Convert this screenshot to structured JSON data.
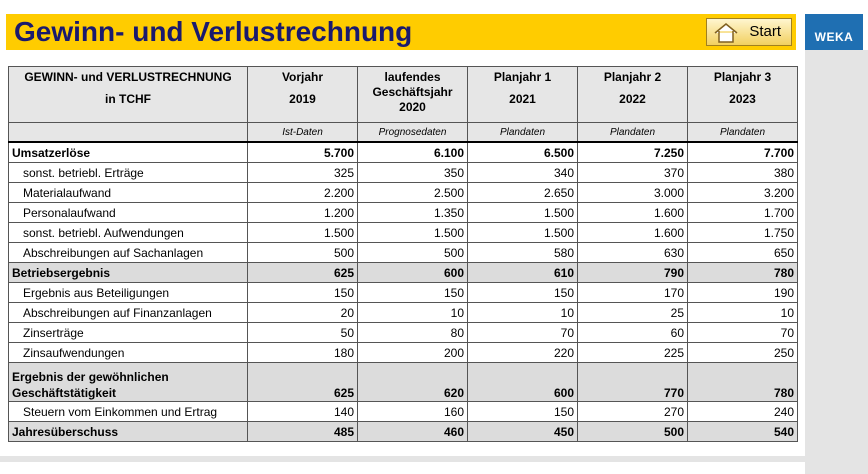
{
  "header": {
    "title": "Gewinn- und Verlustrechnung",
    "button": "Start",
    "logo": "WEKA"
  },
  "table": {
    "columns": [
      {
        "line1": "GEWINN- und VERLUSTRECHNUNG",
        "line2": "in TCHF"
      },
      {
        "line1": "Vorjahr",
        "line2": "2019"
      },
      {
        "line1": "laufendes Geschäftsjahr",
        "line2": "2020"
      },
      {
        "line1": "Planjahr 1",
        "line2": "2021"
      },
      {
        "line1": "Planjahr 2",
        "line2": "2022"
      },
      {
        "line1": "Planjahr 3",
        "line2": "2023"
      }
    ],
    "subheader": [
      "Ist-Daten",
      "Prognosedaten",
      "Plandaten",
      "Plandaten",
      "Plandaten"
    ],
    "rows": [
      {
        "label": "Umsatzerlöse",
        "values": [
          "5.700",
          "6.100",
          "6.500",
          "7.250",
          "7.700"
        ]
      },
      {
        "label": "sonst. betriebl. Erträge",
        "values": [
          "325",
          "350",
          "340",
          "370",
          "380"
        ]
      },
      {
        "label": "Materialaufwand",
        "values": [
          "2.200",
          "2.500",
          "2.650",
          "3.000",
          "3.200"
        ]
      },
      {
        "label": "Personalaufwand",
        "values": [
          "1.200",
          "1.350",
          "1.500",
          "1.600",
          "1.700"
        ]
      },
      {
        "label": "sonst. betriebl. Aufwendungen",
        "values": [
          "1.500",
          "1.500",
          "1.500",
          "1.600",
          "1.750"
        ]
      },
      {
        "label": "Abschreibungen auf Sachanlagen",
        "values": [
          "500",
          "500",
          "580",
          "630",
          "650"
        ]
      },
      {
        "label": "Betriebsergebnis",
        "values": [
          "625",
          "600",
          "610",
          "790",
          "780"
        ]
      },
      {
        "label": "Ergebnis aus Beteiligungen",
        "values": [
          "150",
          "150",
          "150",
          "170",
          "190"
        ]
      },
      {
        "label": "Abschreibungen auf Finanzanlagen",
        "values": [
          "20",
          "10",
          "10",
          "25",
          "10"
        ]
      },
      {
        "label": "Zinserträge",
        "values": [
          "50",
          "80",
          "70",
          "60",
          "70"
        ]
      },
      {
        "label": "Zinsaufwendungen",
        "values": [
          "180",
          "200",
          "220",
          "225",
          "250"
        ]
      },
      {
        "label": "Ergebnis der gewöhnlichen Geschäftstätigkeit",
        "values": [
          "625",
          "620",
          "600",
          "770",
          "780"
        ]
      },
      {
        "label": "Steuern vom Einkommen und Ertrag",
        "values": [
          "140",
          "160",
          "150",
          "270",
          "240"
        ]
      },
      {
        "label": "Jahresüberschuss",
        "values": [
          "485",
          "460",
          "450",
          "500",
          "540"
        ]
      }
    ]
  }
}
